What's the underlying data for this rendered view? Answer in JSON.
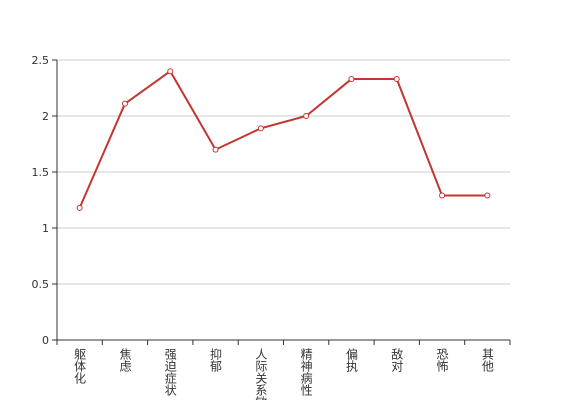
{
  "chart_data": {
    "type": "line",
    "categories": [
      "躯体化",
      "焦虑",
      "强迫症状",
      "抑郁",
      "人际关系敏感",
      "精神病性",
      "偏执",
      "敌对",
      "恐怖",
      "其他"
    ],
    "values": [
      1.18,
      2.11,
      2.4,
      1.7,
      1.89,
      2.0,
      2.33,
      2.33,
      1.29,
      1.29
    ],
    "color": "#c23531",
    "ylim": [
      0,
      2.5
    ],
    "yticks": [
      0,
      0.5,
      1,
      1.5,
      2,
      2.5
    ],
    "grid": true
  }
}
